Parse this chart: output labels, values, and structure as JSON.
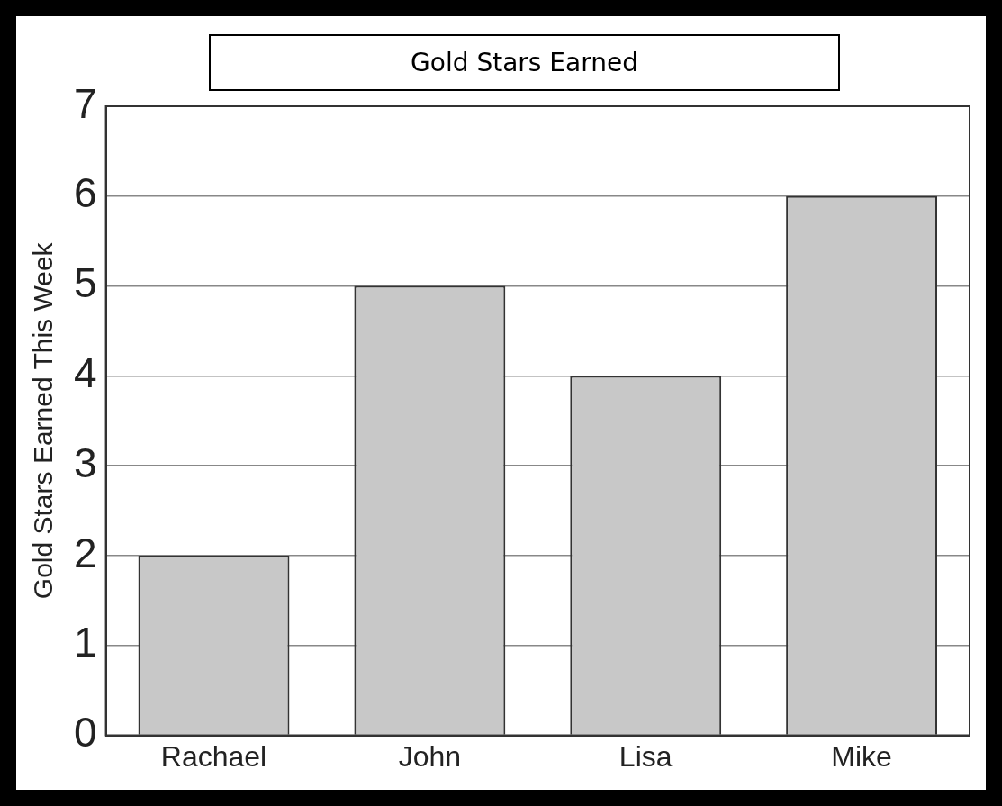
{
  "chart_data": {
    "type": "bar",
    "title": "Gold Stars Earned",
    "ylabel": "Gold Stars Earned This Week",
    "categories": [
      "Rachael",
      "John",
      "Lisa",
      "Mike"
    ],
    "values": [
      2,
      5,
      4,
      6
    ],
    "color": "#c8c8c8",
    "ylim": [
      0,
      7
    ],
    "yticks": [
      0,
      1,
      2,
      3,
      4,
      5,
      6,
      7
    ],
    "grid": "y",
    "legend": false
  }
}
